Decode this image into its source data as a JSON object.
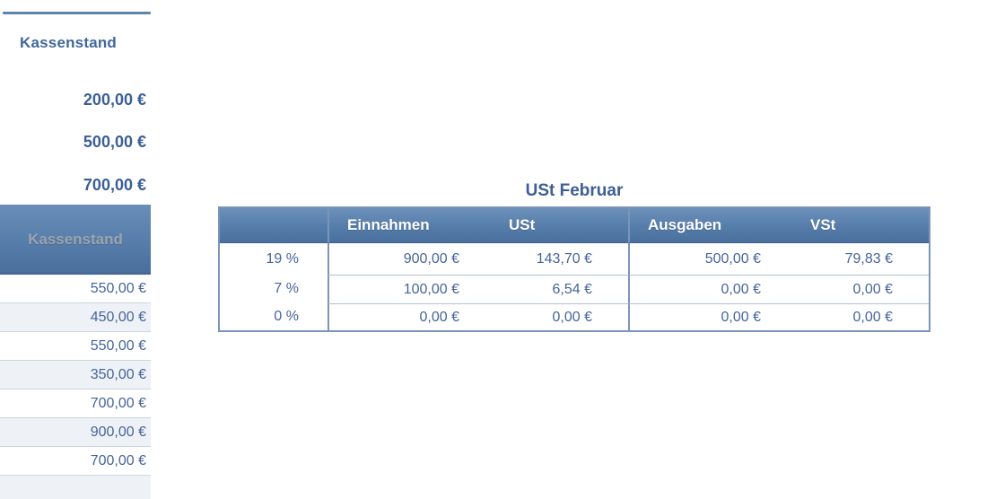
{
  "left_panel": {
    "section_label": "Kassenstand",
    "top_values": [
      "200,00 €",
      "500,00 €",
      "700,00 €"
    ],
    "column_header": "Kassenstand",
    "rows": [
      "550,00 €",
      "450,00 €",
      "550,00 €",
      "350,00 €",
      "700,00 €",
      "900,00 €",
      "700,00 €"
    ]
  },
  "ust_table": {
    "title": "USt Februar",
    "columns": [
      "",
      "Einnahmen",
      "USt",
      "Ausgaben",
      "VSt"
    ],
    "rows": [
      {
        "rate": "19 %",
        "einnahmen": "900,00 €",
        "ust": "143,70 €",
        "ausgaben": "500,00 €",
        "vst": "79,83 €"
      },
      {
        "rate": "7 %",
        "einnahmen": "100,00 €",
        "ust": "6,54 €",
        "ausgaben": "0,00 €",
        "vst": "0,00 €"
      },
      {
        "rate": "0 %",
        "einnahmen": "0,00 €",
        "ust": "0,00 €",
        "ausgaben": "0,00 €",
        "vst": "0,00 €"
      }
    ]
  },
  "colors": {
    "accent_border_blue": "#7b95b9",
    "top_rule_blue": "#5b84af",
    "header_gradient_top": "#6c90ba",
    "header_gradient_bottom": "#4a6f9e",
    "header_text_white": "#ffffff",
    "header_text_muted": "#9ba3ad",
    "value_text_blue": "#46649b",
    "bold_value_blue": "#3b5e96",
    "title_blue": "#3c5e93",
    "alt_row_bg": "#eef1f5",
    "row_separator_light": "#ccd5df",
    "inner_separator": "#b0bfd4"
  }
}
